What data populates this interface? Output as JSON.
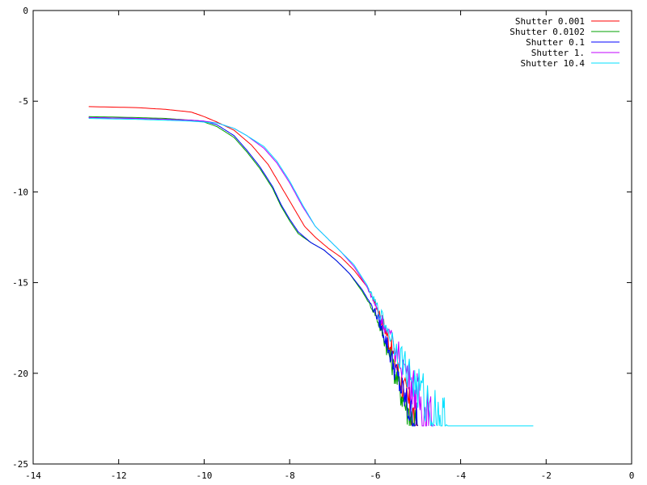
{
  "chart_data": {
    "type": "line",
    "title": "",
    "xlabel": "",
    "ylabel": "",
    "xlim": [
      -14,
      0
    ],
    "ylim": [
      -25,
      0
    ],
    "x_ticks": [
      -14,
      -12,
      -10,
      -8,
      -6,
      -4,
      -2,
      0
    ],
    "y_ticks": [
      0,
      -5,
      -10,
      -15,
      -20,
      -25
    ],
    "grid": false,
    "legend_position": "top-right",
    "series": [
      {
        "name": "Shutter 0.001",
        "color": "#ff0000",
        "points": [
          [
            -12.7,
            -5.3
          ],
          [
            -11.6,
            -5.35
          ],
          [
            -10.9,
            -5.45
          ],
          [
            -10.3,
            -5.6
          ],
          [
            -10.0,
            -5.85
          ],
          [
            -9.7,
            -6.15
          ],
          [
            -9.3,
            -6.6
          ],
          [
            -8.9,
            -7.4
          ],
          [
            -8.5,
            -8.5
          ],
          [
            -8.2,
            -9.7
          ],
          [
            -7.9,
            -10.9
          ],
          [
            -7.65,
            -11.9
          ],
          [
            -7.4,
            -12.5
          ],
          [
            -7.1,
            -13.1
          ],
          [
            -6.8,
            -13.6
          ],
          [
            -6.5,
            -14.3
          ],
          [
            -6.2,
            -15.2
          ],
          [
            -6.0,
            -16.1
          ],
          [
            -5.8,
            -17.3
          ],
          [
            -5.6,
            -18.8
          ],
          [
            -5.4,
            -20.4
          ],
          [
            -5.2,
            -21.8
          ],
          [
            -5.0,
            -22.9
          ]
        ]
      },
      {
        "name": "Shutter 0.0102",
        "color": "#00a000",
        "points": [
          [
            -12.7,
            -5.85
          ],
          [
            -11.6,
            -5.9
          ],
          [
            -10.9,
            -5.95
          ],
          [
            -10.3,
            -6.05
          ],
          [
            -10.0,
            -6.15
          ],
          [
            -9.7,
            -6.4
          ],
          [
            -9.3,
            -7.0
          ],
          [
            -9.0,
            -7.8
          ],
          [
            -8.7,
            -8.7
          ],
          [
            -8.4,
            -9.8
          ],
          [
            -8.2,
            -10.8
          ],
          [
            -8.0,
            -11.6
          ],
          [
            -7.8,
            -12.3
          ],
          [
            -7.5,
            -12.8
          ],
          [
            -7.2,
            -13.2
          ],
          [
            -6.9,
            -13.8
          ],
          [
            -6.6,
            -14.5
          ],
          [
            -6.3,
            -15.5
          ],
          [
            -6.0,
            -16.7
          ],
          [
            -5.8,
            -18.0
          ],
          [
            -5.6,
            -19.5
          ],
          [
            -5.4,
            -21.0
          ],
          [
            -5.2,
            -22.3
          ],
          [
            -5.0,
            -22.9
          ]
        ]
      },
      {
        "name": "Shutter 0.1",
        "color": "#0000ff",
        "points": [
          [
            -12.7,
            -5.9
          ],
          [
            -11.6,
            -5.95
          ],
          [
            -10.9,
            -6.0
          ],
          [
            -10.3,
            -6.05
          ],
          [
            -10.0,
            -6.1
          ],
          [
            -9.7,
            -6.3
          ],
          [
            -9.3,
            -6.9
          ],
          [
            -9.0,
            -7.7
          ],
          [
            -8.7,
            -8.6
          ],
          [
            -8.4,
            -9.7
          ],
          [
            -8.2,
            -10.7
          ],
          [
            -8.0,
            -11.5
          ],
          [
            -7.8,
            -12.2
          ],
          [
            -7.5,
            -12.8
          ],
          [
            -7.2,
            -13.2
          ],
          [
            -6.9,
            -13.8
          ],
          [
            -6.6,
            -14.5
          ],
          [
            -6.3,
            -15.4
          ],
          [
            -6.0,
            -16.6
          ],
          [
            -5.8,
            -17.8
          ],
          [
            -5.6,
            -19.3
          ],
          [
            -5.4,
            -20.8
          ],
          [
            -5.2,
            -22.1
          ],
          [
            -5.0,
            -22.9
          ]
        ]
      },
      {
        "name": "Shutter 1.",
        "color": "#c000ff",
        "points": [
          [
            -12.7,
            -5.9
          ],
          [
            -11.6,
            -5.95
          ],
          [
            -10.9,
            -6.0
          ],
          [
            -10.3,
            -6.05
          ],
          [
            -10.0,
            -6.1
          ],
          [
            -9.7,
            -6.2
          ],
          [
            -9.3,
            -6.5
          ],
          [
            -9.0,
            -6.9
          ],
          [
            -8.6,
            -7.6
          ],
          [
            -8.3,
            -8.4
          ],
          [
            -8.0,
            -9.5
          ],
          [
            -7.7,
            -10.8
          ],
          [
            -7.4,
            -11.9
          ],
          [
            -7.1,
            -12.6
          ],
          [
            -6.8,
            -13.3
          ],
          [
            -6.5,
            -14.1
          ],
          [
            -6.2,
            -15.2
          ],
          [
            -6.0,
            -16.2
          ],
          [
            -5.8,
            -17.3
          ],
          [
            -5.5,
            -18.8
          ],
          [
            -5.2,
            -20.2
          ],
          [
            -5.0,
            -21.3
          ],
          [
            -4.8,
            -22.3
          ],
          [
            -4.6,
            -22.9
          ]
        ]
      },
      {
        "name": "Shutter 10.4",
        "color": "#00e0ff",
        "points": [
          [
            -12.7,
            -5.95
          ],
          [
            -11.6,
            -6.0
          ],
          [
            -10.9,
            -6.05
          ],
          [
            -10.3,
            -6.1
          ],
          [
            -10.0,
            -6.15
          ],
          [
            -9.7,
            -6.2
          ],
          [
            -9.3,
            -6.5
          ],
          [
            -9.0,
            -6.9
          ],
          [
            -8.6,
            -7.5
          ],
          [
            -8.3,
            -8.3
          ],
          [
            -8.0,
            -9.4
          ],
          [
            -7.7,
            -10.7
          ],
          [
            -7.4,
            -11.9
          ],
          [
            -7.1,
            -12.6
          ],
          [
            -6.8,
            -13.3
          ],
          [
            -6.5,
            -14.0
          ],
          [
            -6.2,
            -15.1
          ],
          [
            -6.0,
            -16.1
          ],
          [
            -5.7,
            -17.6
          ],
          [
            -5.4,
            -19.1
          ],
          [
            -5.1,
            -20.5
          ],
          [
            -4.8,
            -21.6
          ],
          [
            -4.5,
            -22.5
          ],
          [
            -4.3,
            -22.9
          ],
          [
            -2.3,
            -22.9
          ]
        ]
      }
    ]
  }
}
